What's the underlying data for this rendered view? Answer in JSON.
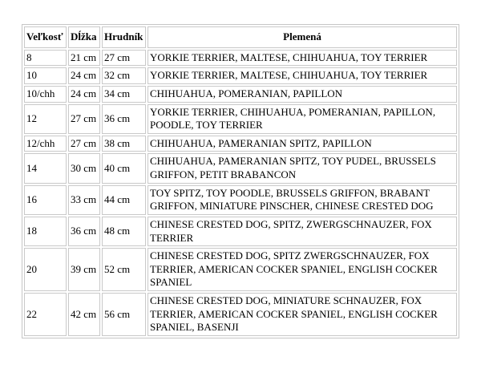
{
  "colors": {
    "background": "#ffffff",
    "border": "#c9c9c9",
    "text": "#000000"
  },
  "table": {
    "headers": {
      "size": "Veľkosť",
      "length": "Dĺžka",
      "chest": "Hrudník",
      "breeds": "Plemená"
    },
    "rows": [
      {
        "size": "8",
        "length": "21 cm",
        "chest": "27 cm",
        "breeds": "YORKIE TERRIER, MALTESE, CHIHUAHUA, TOY TERRIER"
      },
      {
        "size": "10",
        "length": "24 cm",
        "chest": "32 cm",
        "breeds": "YORKIE TERRIER, MALTESE, CHIHUAHUA, TOY TERRIER"
      },
      {
        "size": "10/chh",
        "length": "24 cm",
        "chest": "34 cm",
        "breeds": "CHIHUAHUA, POMERANIAN, PAPILLON"
      },
      {
        "size": "12",
        "length": "27 cm",
        "chest": "36 cm",
        "breeds": "YORKIE TERRIER, CHIHUAHUA, POMERANIAN, PAPILLON, POODLE, TOY TERRIER"
      },
      {
        "size": "12/chh",
        "length": "27 cm",
        "chest": "38 cm",
        "breeds": "CHIHUAHUA, PAMERANIAN SPITZ, PAPILLON"
      },
      {
        "size": "14",
        "length": "30 cm",
        "chest": "40 cm",
        "breeds": "CHIHUAHUA, PAMERANIAN SPITZ, TOY PUDEL, BRUSSELS GRIFFON, PETIT BRABANCON"
      },
      {
        "size": "16",
        "length": "33 cm",
        "chest": "44 cm",
        "breeds": "TOY SPITZ, TOY POODLE, BRUSSELS GRIFFON, BRABANT GRIFFON, MINIATURE PINSCHER, CHINESE CRESTED DOG"
      },
      {
        "size": "18",
        "length": "36 cm",
        "chest": "48 cm",
        "breeds": "CHINESE CRESTED DOG, SPITZ, ZWERGSCHNAUZER, FOX TERRIER"
      },
      {
        "size": "20",
        "length": "39 cm",
        "chest": "52 cm",
        "breeds": "CHINESE CRESTED DOG, SPITZ ZWERGSCHNAUZER, FOX TERRIER, AMERICAN COCKER SPANIEL, ENGLISH COCKER SPANIEL"
      },
      {
        "size": "22",
        "length": "42 cm",
        "chest": "56 cm",
        "breeds": "CHINESE CRESTED DOG, MINIATURE SCHNAUZER, FOX TERRIER, AMERICAN COCKER SPANIEL, ENGLISH COCKER SPANIEL, BASENJI"
      }
    ]
  }
}
